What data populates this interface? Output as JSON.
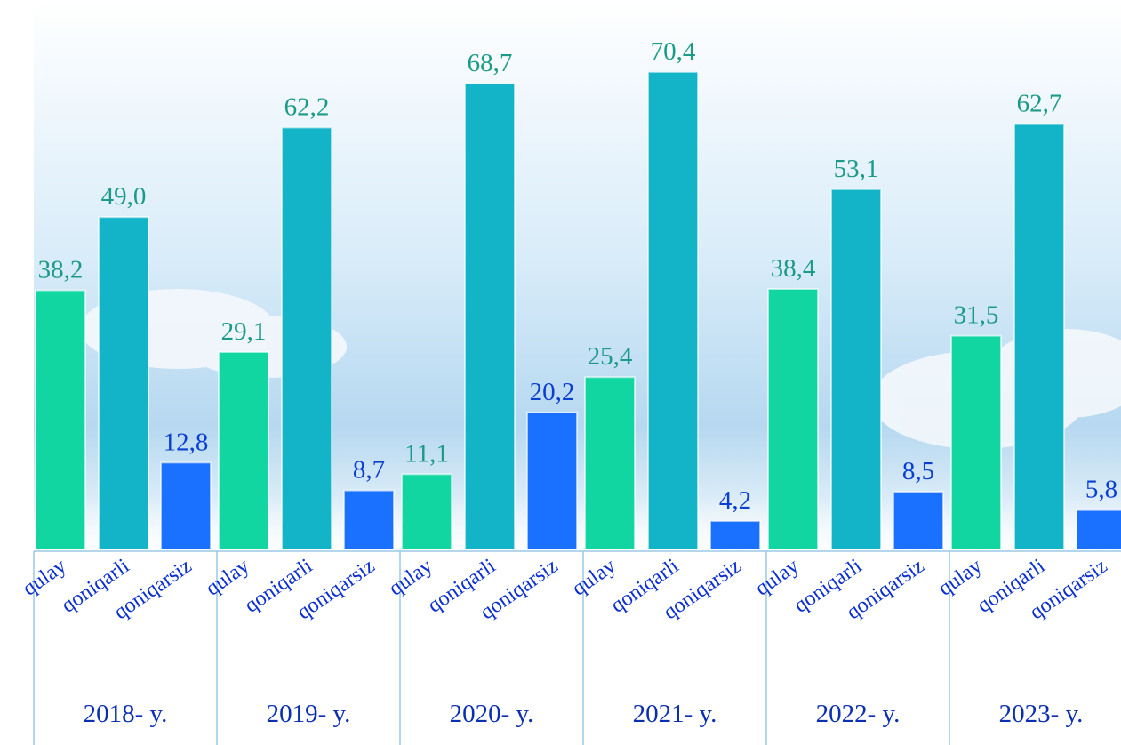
{
  "chart_data": {
    "type": "bar",
    "categories": [
      "2018- y.",
      "2019- y.",
      "2020- y.",
      "2021- y.",
      "2022- y.",
      "2023- y."
    ],
    "series": [
      {
        "name": "qulay",
        "color": "#12d6a2",
        "values": [
          38.2,
          29.1,
          11.1,
          25.4,
          38.4,
          31.5
        ],
        "value_labels": [
          "38,2",
          "29,1",
          "11,1",
          "25,4",
          "38,4",
          "31,5"
        ]
      },
      {
        "name": "qoniqarli",
        "color": "#14b4c8",
        "values": [
          49.0,
          62.2,
          68.7,
          70.4,
          53.1,
          62.7
        ],
        "value_labels": [
          "49,0",
          "62,2",
          "68,7",
          "70,4",
          "53,1",
          "62,7"
        ]
      },
      {
        "name": "qoniqarsiz",
        "color": "#1a70ff",
        "values": [
          12.8,
          8.7,
          20.2,
          4.2,
          8.5,
          5.8
        ],
        "value_labels": [
          "12,8",
          "8,7",
          "20,2",
          "4,2",
          "8,5",
          "5,8"
        ]
      }
    ]
  }
}
